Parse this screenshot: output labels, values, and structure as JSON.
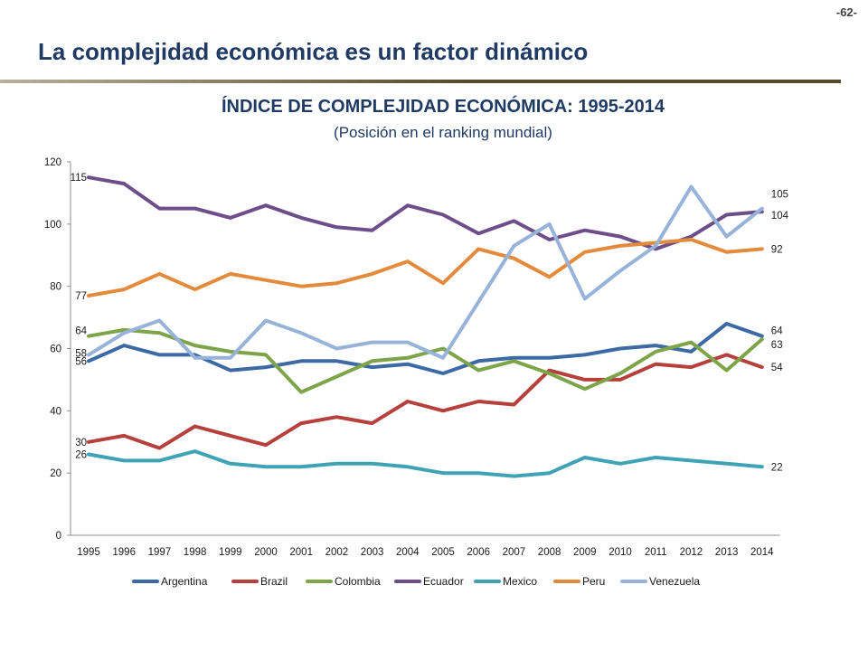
{
  "page": {
    "number": "-62-",
    "title": "La complejidad económica es un factor dinámico"
  },
  "chart_data": {
    "type": "line",
    "title": "ÍNDICE DE COMPLEJIDAD ECONÓMICA: 1995-2014",
    "subtitle": "(Posición en el ranking mundial)",
    "xlabel": "",
    "ylabel": "",
    "ylim": [
      0,
      120
    ],
    "yticks": [
      0,
      20,
      40,
      60,
      80,
      100,
      120
    ],
    "grid": false,
    "legend_position": "bottom",
    "x": [
      "1995",
      "1996",
      "1997",
      "1998",
      "1999",
      "2000",
      "2001",
      "2002",
      "2003",
      "2004",
      "2005",
      "2006",
      "2007",
      "2008",
      "2009",
      "2010",
      "2011",
      "2012",
      "2013",
      "2014"
    ],
    "series": [
      {
        "name": "Argentina",
        "color": "#3d6aa5",
        "values": [
          56,
          61,
          58,
          58,
          53,
          54,
          56,
          56,
          54,
          55,
          52,
          56,
          57,
          57,
          58,
          60,
          61,
          59,
          68,
          64
        ],
        "start_label": "56",
        "end_label": "64"
      },
      {
        "name": "Brazil",
        "color": "#b5403c",
        "values": [
          30,
          32,
          28,
          35,
          32,
          29,
          36,
          38,
          36,
          43,
          40,
          43,
          42,
          53,
          50,
          50,
          55,
          54,
          58,
          54
        ],
        "start_label": "30",
        "end_label": "54"
      },
      {
        "name": "Colombia",
        "color": "#7ea44a",
        "values": [
          64,
          66,
          65,
          61,
          59,
          58,
          46,
          51,
          56,
          57,
          60,
          53,
          56,
          52,
          47,
          52,
          59,
          62,
          53,
          63
        ],
        "start_label": "64",
        "end_label": "63"
      },
      {
        "name": "Ecuador",
        "color": "#6e4e8a",
        "values": [
          115,
          113,
          105,
          105,
          102,
          106,
          102,
          99,
          98,
          106,
          103,
          97,
          101,
          95,
          98,
          96,
          92,
          96,
          103,
          104
        ],
        "start_label": "115",
        "end_label": "104"
      },
      {
        "name": "Mexico",
        "color": "#3fa3b5",
        "values": [
          26,
          24,
          24,
          27,
          23,
          22,
          22,
          23,
          23,
          22,
          20,
          20,
          19,
          20,
          25,
          23,
          25,
          24,
          23,
          22
        ],
        "start_label": "26",
        "end_label": "22"
      },
      {
        "name": "Peru",
        "color": "#e48a3c",
        "values": [
          77,
          79,
          84,
          79,
          84,
          82,
          80,
          81,
          84,
          88,
          81,
          92,
          89,
          83,
          91,
          93,
          94,
          95,
          91,
          92
        ],
        "start_label": "77",
        "end_label": "92"
      },
      {
        "name": "Venezuela",
        "color": "#97b3d9",
        "values": [
          58,
          65,
          69,
          57,
          57,
          69,
          65,
          60,
          62,
          62,
          57,
          75,
          93,
          100,
          76,
          85,
          93,
          112,
          96,
          105
        ],
        "start_label": "58",
        "end_label": "105"
      }
    ]
  }
}
